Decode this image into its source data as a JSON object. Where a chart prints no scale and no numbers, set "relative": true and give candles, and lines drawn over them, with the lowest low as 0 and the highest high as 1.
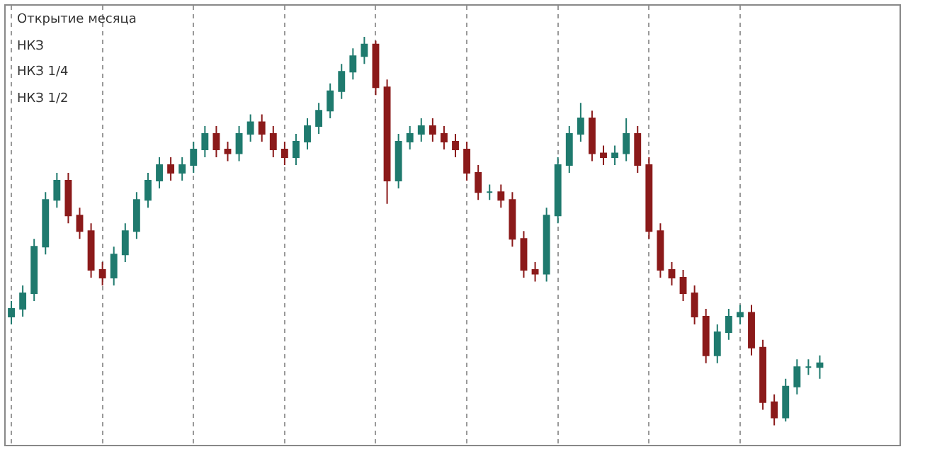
{
  "chart_data": {
    "type": "candlestick",
    "relative": true,
    "grid": "x",
    "colors": [
      "#1f7a6e",
      "#1f7a6e",
      "#1f7a6e",
      "#1f7a6e",
      "#1f7a6e",
      "#8b1a1a",
      "#8b1a1a",
      "#8b1a1a",
      "#8b1a1a",
      "#1f7a6e",
      "#1f7a6e",
      "#1f7a6e",
      "#1f7a6e",
      "#1f7a6e",
      "#8b1a1a",
      "#1f7a6e",
      "#1f7a6e",
      "#1f7a6e",
      "#8b1a1a",
      "#8b1a1a",
      "#1f7a6e",
      "#1f7a6e",
      "#8b1a1a",
      "#8b1a1a",
      "#8b1a1a",
      "#1f7a6e",
      "#1f7a6e",
      "#1f7a6e",
      "#1f7a6e",
      "#1f7a6e",
      "#1f7a6e",
      "#1f7a6e",
      "#8b1a1a",
      "#8b1a1a",
      "#1f7a6e",
      "#1f7a6e",
      "#1f7a6e",
      "#8b1a1a",
      "#8b1a1a",
      "#8b1a1a",
      "#8b1a1a",
      "#8b1a1a",
      "#1f7a6e",
      "#8b1a1a",
      "#8b1a1a",
      "#8b1a1a",
      "#8b1a1a",
      "#1f7a6e",
      "#1f7a6e",
      "#1f7a6e",
      "#1f7a6e",
      "#8b1a1a",
      "#8b1a1a",
      "#1f7a6e",
      "#1f7a6e",
      "#8b1a1a",
      "#8b1a1a",
      "#8b1a1a",
      "#8b1a1a",
      "#8b1a1a",
      "#8b1a1a",
      "#8b1a1a",
      "#1f7a6e",
      "#1f7a6e",
      "#1f7a6e",
      "#8b1a1a",
      "#8b1a1a",
      "#8b1a1a",
      "#1f7a6e",
      "#1f7a6e",
      "#1f7a6e",
      "#1f7a6e"
    ],
    "categories": [
      null,
      null,
      null,
      null,
      null,
      null,
      null,
      null,
      null,
      null,
      null,
      null,
      null,
      null,
      null,
      null,
      null,
      null,
      null,
      null,
      null,
      null,
      null,
      null,
      null,
      null,
      null,
      null,
      null,
      null,
      null,
      null,
      null,
      null,
      null,
      null,
      null,
      null,
      null,
      null,
      null,
      null,
      null,
      null,
      null,
      null,
      null,
      null,
      null,
      null,
      null,
      null,
      null,
      null,
      null,
      null,
      null,
      null,
      null,
      null,
      null,
      null,
      null,
      null,
      null,
      null,
      null,
      null,
      null,
      null,
      null,
      null
    ],
    "ohlc": [
      [
        0.28,
        0.32,
        0.26,
        0.3
      ],
      [
        0.3,
        0.36,
        0.28,
        0.34
      ],
      [
        0.34,
        0.48,
        0.32,
        0.46
      ],
      [
        0.46,
        0.6,
        0.44,
        0.58
      ],
      [
        0.58,
        0.65,
        0.56,
        0.63
      ],
      [
        0.63,
        0.65,
        0.52,
        0.54
      ],
      [
        0.54,
        0.56,
        0.48,
        0.5
      ],
      [
        0.5,
        0.52,
        0.38,
        0.4
      ],
      [
        0.4,
        0.42,
        0.36,
        0.38
      ],
      [
        0.38,
        0.46,
        0.36,
        0.44
      ],
      [
        0.44,
        0.52,
        0.42,
        0.5
      ],
      [
        0.5,
        0.6,
        0.48,
        0.58
      ],
      [
        0.58,
        0.65,
        0.56,
        0.63
      ],
      [
        0.63,
        0.69,
        0.61,
        0.67
      ],
      [
        0.67,
        0.69,
        0.63,
        0.65
      ],
      [
        0.65,
        0.69,
        0.63,
        0.67
      ],
      [
        0.67,
        0.73,
        0.65,
        0.71
      ],
      [
        0.71,
        0.77,
        0.69,
        0.75
      ],
      [
        0.75,
        0.77,
        0.69,
        0.71
      ],
      [
        0.71,
        0.73,
        0.68,
        0.7
      ],
      [
        0.7,
        0.77,
        0.68,
        0.75
      ],
      [
        0.75,
        0.8,
        0.73,
        0.78
      ],
      [
        0.78,
        0.8,
        0.73,
        0.75
      ],
      [
        0.75,
        0.77,
        0.69,
        0.71
      ],
      [
        0.71,
        0.73,
        0.67,
        0.69
      ],
      [
        0.69,
        0.75,
        0.67,
        0.73
      ],
      [
        0.73,
        0.79,
        0.71,
        0.77
      ],
      [
        0.77,
        0.83,
        0.75,
        0.81
      ],
      [
        0.81,
        0.88,
        0.79,
        0.86
      ],
      [
        0.86,
        0.93,
        0.84,
        0.91
      ],
      [
        0.91,
        0.97,
        0.89,
        0.95
      ],
      [
        0.95,
        1,
        0.93,
        0.98
      ],
      [
        0.98,
        0.99,
        0.85,
        0.87
      ],
      [
        0.87,
        0.89,
        0.57,
        0.63
      ],
      [
        0.63,
        0.75,
        0.61,
        0.73
      ],
      [
        0.73,
        0.77,
        0.71,
        0.75
      ],
      [
        0.75,
        0.79,
        0.73,
        0.77
      ],
      [
        0.77,
        0.79,
        0.73,
        0.75
      ],
      [
        0.75,
        0.77,
        0.71,
        0.73
      ],
      [
        0.73,
        0.75,
        0.69,
        0.71
      ],
      [
        0.71,
        0.73,
        0.63,
        0.65
      ],
      [
        0.65,
        0.67,
        0.58,
        0.6
      ],
      [
        0.6,
        0.62,
        0.58,
        0.6
      ],
      [
        0.6,
        0.62,
        0.56,
        0.58
      ],
      [
        0.58,
        0.6,
        0.46,
        0.48
      ],
      [
        0.48,
        0.5,
        0.38,
        0.4
      ],
      [
        0.4,
        0.42,
        0.37,
        0.39
      ],
      [
        0.39,
        0.56,
        0.37,
        0.54
      ],
      [
        0.54,
        0.69,
        0.52,
        0.67
      ],
      [
        0.67,
        0.77,
        0.65,
        0.75
      ],
      [
        0.75,
        0.83,
        0.73,
        0.79
      ],
      [
        0.79,
        0.81,
        0.68,
        0.7
      ],
      [
        0.7,
        0.72,
        0.67,
        0.69
      ],
      [
        0.69,
        0.72,
        0.67,
        0.7
      ],
      [
        0.7,
        0.79,
        0.68,
        0.75
      ],
      [
        0.75,
        0.77,
        0.65,
        0.67
      ],
      [
        0.67,
        0.69,
        0.48,
        0.5
      ],
      [
        0.5,
        0.52,
        0.38,
        0.4
      ],
      [
        0.4,
        0.42,
        0.36,
        0.38
      ],
      [
        0.38,
        0.4,
        0.32,
        0.34
      ],
      [
        0.34,
        0.36,
        0.26,
        0.28
      ],
      [
        0.28,
        0.3,
        0.16,
        0.18
      ],
      [
        0.18,
        0.26,
        0.16,
        0.24
      ],
      [
        0.24,
        0.3,
        0.22,
        0.28
      ],
      [
        0.28,
        0.31,
        0.26,
        0.29
      ],
      [
        0.29,
        0.31,
        0.18,
        0.2
      ],
      [
        0.2,
        0.22,
        0.04,
        0.06
      ],
      [
        0.06,
        0.08,
        0,
        0.02
      ],
      [
        0.02,
        0.12,
        0.01,
        0.1
      ],
      [
        0.1,
        0.17,
        0.08,
        0.15
      ],
      [
        0.15,
        0.17,
        0.13,
        0.15
      ],
      [
        0.15,
        0.18,
        0.12,
        0.16
      ]
    ],
    "annotations": [
      "Открытие месяца",
      "НКЗ",
      "НКЗ 1/4",
      "НКЗ 1/2"
    ]
  }
}
